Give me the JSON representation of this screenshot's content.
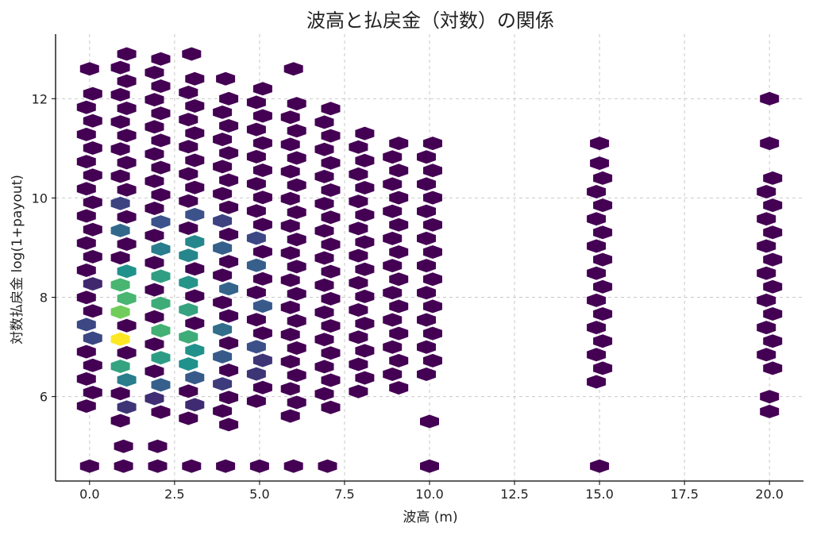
{
  "chart_data": {
    "type": "heatmap",
    "subtype": "hexbin",
    "title": "波高と払戻金（対数）の関係",
    "xlabel": "波高 (m)",
    "ylabel": "対数払戻金 log(1+payout)",
    "xlim": [
      -1,
      21
    ],
    "ylim": [
      4.3,
      13.3
    ],
    "xticks": [
      0.0,
      2.5,
      5.0,
      7.5,
      10.0,
      12.5,
      15.0,
      17.5,
      20.0
    ],
    "xtick_labels": [
      "0.0",
      "2.5",
      "5.0",
      "7.5",
      "10.0",
      "12.5",
      "15.0",
      "17.5",
      "20.0"
    ],
    "yticks": [
      6,
      8,
      10,
      12
    ],
    "ytick_labels": [
      "6",
      "8",
      "10",
      "12"
    ],
    "grid": true,
    "colormap": [
      "#440154",
      "#3b528b",
      "#21918c",
      "#5ec962",
      "#fde725"
    ],
    "hex_y_step": 0.2735,
    "columns": [
      {
        "x": 0,
        "y_min": 5.7,
        "y_max": 12.1,
        "extra_y": [
          12.6,
          4.6
        ],
        "intensity": [
          [
            7.3,
            0.22
          ],
          [
            8.2,
            0.12
          ]
        ]
      },
      {
        "x": 1,
        "y_min": 5.4,
        "y_max": 12.9,
        "extra_y": [
          5.0,
          4.6
        ],
        "intensity": [
          [
            7.2,
            1.0
          ],
          [
            7.6,
            0.78
          ],
          [
            8.1,
            0.66
          ],
          [
            6.7,
            0.58
          ],
          [
            8.6,
            0.5
          ],
          [
            9.3,
            0.34
          ],
          [
            6.4,
            0.42
          ],
          [
            9.8,
            0.2
          ],
          [
            5.9,
            0.16
          ]
        ]
      },
      {
        "x": 2,
        "y_min": 5.5,
        "y_max": 12.8,
        "extra_y": [
          5.0,
          4.6
        ],
        "intensity": [
          [
            7.3,
            0.64
          ],
          [
            7.8,
            0.62
          ],
          [
            8.4,
            0.56
          ],
          [
            6.8,
            0.55
          ],
          [
            9.0,
            0.42
          ],
          [
            6.3,
            0.3
          ],
          [
            9.6,
            0.25
          ],
          [
            5.9,
            0.14
          ]
        ]
      },
      {
        "x": 3,
        "y_min": 5.5,
        "y_max": 12.4,
        "extra_y": [
          12.9,
          4.6
        ],
        "intensity": [
          [
            7.2,
            0.62
          ],
          [
            7.8,
            0.58
          ],
          [
            8.4,
            0.52
          ],
          [
            6.8,
            0.5
          ],
          [
            9.0,
            0.46
          ],
          [
            6.3,
            0.28
          ],
          [
            9.6,
            0.25
          ],
          [
            5.9,
            0.13
          ]
        ]
      },
      {
        "x": 4,
        "y_min": 5.2,
        "y_max": 12.0,
        "extra_y": [
          12.4,
          4.6
        ],
        "intensity": [
          [
            7.4,
            0.36
          ],
          [
            8.2,
            0.32
          ],
          [
            8.9,
            0.3
          ],
          [
            6.8,
            0.28
          ],
          [
            9.6,
            0.2
          ],
          [
            6.3,
            0.18
          ]
        ]
      },
      {
        "x": 5,
        "y_min": 5.7,
        "y_max": 12.2,
        "extra_y": [
          4.6
        ],
        "intensity": [
          [
            8.6,
            0.3
          ],
          [
            7.8,
            0.28
          ],
          [
            7.1,
            0.24
          ],
          [
            9.3,
            0.22
          ],
          [
            6.6,
            0.16
          ]
        ]
      },
      {
        "x": 6,
        "y_min": 5.5,
        "y_max": 11.9,
        "extra_y": [
          12.6,
          4.6
        ],
        "intensity": []
      },
      {
        "x": 7,
        "y_min": 5.7,
        "y_max": 11.8,
        "extra_y": [
          4.6
        ],
        "intensity": []
      },
      {
        "x": 8,
        "y_min": 6.0,
        "y_max": 11.3,
        "extra_y": [],
        "intensity": []
      },
      {
        "x": 9,
        "y_min": 6.0,
        "y_max": 11.1,
        "extra_y": [],
        "intensity": []
      },
      {
        "x": 10,
        "y_min": 6.2,
        "y_max": 11.1,
        "extra_y": [
          5.5,
          4.6
        ],
        "intensity": []
      },
      {
        "x": 15,
        "y_min": 6.2,
        "y_max": 10.4,
        "extra_y": [
          10.7,
          11.1,
          4.6
        ],
        "intensity": []
      },
      {
        "x": 20,
        "y_min": 6.4,
        "y_max": 10.4,
        "extra_y": [
          12.0,
          11.1,
          6.0,
          5.7
        ],
        "intensity": []
      }
    ]
  }
}
